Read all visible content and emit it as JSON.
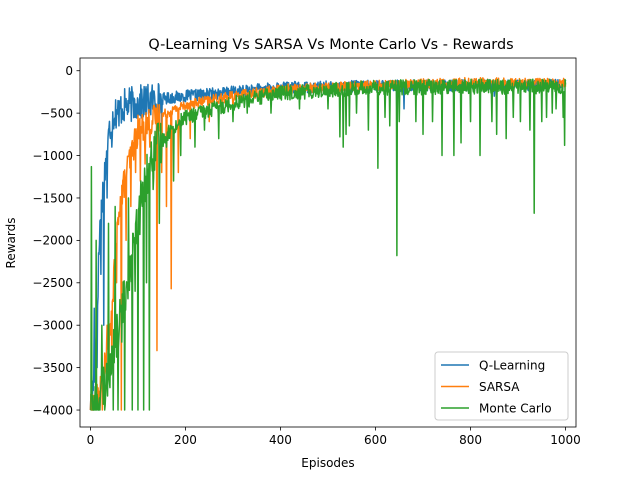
{
  "chart_data": {
    "type": "line",
    "title": "Q-Learning Vs SARSA Vs Monte Carlo Vs - Rewards",
    "xlabel": "Episodes",
    "ylabel": "Rewards",
    "xlim": [
      -22,
      1022
    ],
    "ylim": [
      -4200,
      150
    ],
    "xticks": [
      0,
      200,
      400,
      600,
      800,
      1000
    ],
    "yticks": [
      0,
      -500,
      -1000,
      -1500,
      -2000,
      -2500,
      -3000,
      -3500,
      -4000
    ],
    "grid": false,
    "legend_position": "lower-right",
    "series": [
      {
        "name": "Q-Learning",
        "color": "#1f77b4",
        "trend": [
          [
            0,
            -4000
          ],
          [
            10,
            -3500
          ],
          [
            20,
            -1800
          ],
          [
            30,
            -1200
          ],
          [
            40,
            -700
          ],
          [
            50,
            -500
          ],
          [
            70,
            -420
          ],
          [
            100,
            -380
          ],
          [
            150,
            -330
          ],
          [
            200,
            -300
          ],
          [
            300,
            -250
          ],
          [
            400,
            -200
          ],
          [
            600,
            -180
          ],
          [
            800,
            -170
          ],
          [
            1000,
            -170
          ]
        ],
        "noise": 70,
        "spikes": [
          [
            3,
            -4000
          ],
          [
            8,
            -2800
          ],
          [
            14,
            -3500
          ],
          [
            22,
            -2400
          ],
          [
            28,
            -3000
          ],
          [
            35,
            -1500
          ],
          [
            45,
            -900
          ],
          [
            60,
            -650
          ],
          [
            150,
            -650
          ],
          [
            645,
            -550
          ],
          [
            660,
            -450
          ],
          [
            740,
            -350
          ],
          [
            850,
            -300
          ]
        ]
      },
      {
        "name": "SARSA",
        "color": "#ff7f0e",
        "trend": [
          [
            0,
            -4000
          ],
          [
            20,
            -3800
          ],
          [
            40,
            -3200
          ],
          [
            60,
            -1600
          ],
          [
            80,
            -1100
          ],
          [
            100,
            -700
          ],
          [
            140,
            -550
          ],
          [
            200,
            -400
          ],
          [
            300,
            -300
          ],
          [
            400,
            -220
          ],
          [
            600,
            -170
          ],
          [
            800,
            -140
          ],
          [
            1000,
            -150
          ]
        ],
        "noise": 60,
        "spikes": [
          [
            25,
            -4000
          ],
          [
            35,
            -3000
          ],
          [
            45,
            -3500
          ],
          [
            55,
            -2500
          ],
          [
            65,
            -4000
          ],
          [
            75,
            -2000
          ],
          [
            85,
            -1600
          ],
          [
            95,
            -1200
          ],
          [
            105,
            -1300
          ],
          [
            115,
            -1100
          ],
          [
            125,
            -900
          ],
          [
            140,
            -3300
          ],
          [
            150,
            -1200
          ],
          [
            160,
            -1600
          ],
          [
            170,
            -2570
          ],
          [
            185,
            -1200
          ],
          [
            210,
            -800
          ],
          [
            250,
            -600
          ],
          [
            300,
            -450
          ]
        ]
      },
      {
        "name": "Monte Carlo",
        "color": "#2ca02c",
        "trend": [
          [
            0,
            -4000
          ],
          [
            20,
            -3900
          ],
          [
            40,
            -3500
          ],
          [
            60,
            -3000
          ],
          [
            80,
            -2400
          ],
          [
            100,
            -1800
          ],
          [
            120,
            -1200
          ],
          [
            140,
            -900
          ],
          [
            160,
            -750
          ],
          [
            200,
            -550
          ],
          [
            300,
            -380
          ],
          [
            400,
            -260
          ],
          [
            600,
            -200
          ],
          [
            800,
            -190
          ],
          [
            1000,
            -190
          ]
        ],
        "noise": 90,
        "spikes": [
          [
            2,
            -1130
          ],
          [
            5,
            -4000
          ],
          [
            12,
            -2000
          ],
          [
            18,
            -4000
          ],
          [
            24,
            -3000
          ],
          [
            30,
            -4000
          ],
          [
            38,
            -1800
          ],
          [
            48,
            -4000
          ],
          [
            52,
            -1600
          ],
          [
            58,
            -4000
          ],
          [
            66,
            -3200
          ],
          [
            72,
            -4000
          ],
          [
            80,
            -1500
          ],
          [
            88,
            -4000
          ],
          [
            94,
            -2600
          ],
          [
            100,
            -4000
          ],
          [
            106,
            -1300
          ],
          [
            112,
            -4000
          ],
          [
            118,
            -2500
          ],
          [
            124,
            -4000
          ],
          [
            132,
            -1400
          ],
          [
            145,
            -1800
          ],
          [
            160,
            -900
          ],
          [
            175,
            -1300
          ],
          [
            190,
            -1000
          ],
          [
            220,
            -900
          ],
          [
            240,
            -700
          ],
          [
            270,
            -800
          ],
          [
            300,
            -600
          ],
          [
            330,
            -500
          ],
          [
            380,
            -500
          ],
          [
            440,
            -450
          ],
          [
            500,
            -450
          ],
          [
            525,
            -780
          ],
          [
            532,
            -900
          ],
          [
            538,
            -750
          ],
          [
            545,
            -650
          ],
          [
            560,
            -500
          ],
          [
            585,
            -700
          ],
          [
            605,
            -1150
          ],
          [
            620,
            -550
          ],
          [
            630,
            -650
          ],
          [
            645,
            -2180
          ],
          [
            650,
            -600
          ],
          [
            685,
            -600
          ],
          [
            700,
            -750
          ],
          [
            720,
            -600
          ],
          [
            740,
            -1000
          ],
          [
            765,
            -1000
          ],
          [
            780,
            -850
          ],
          [
            800,
            -600
          ],
          [
            820,
            -1000
          ],
          [
            845,
            -600
          ],
          [
            855,
            -750
          ],
          [
            875,
            -800
          ],
          [
            890,
            -550
          ],
          [
            905,
            -600
          ],
          [
            925,
            -700
          ],
          [
            934,
            -1680
          ],
          [
            950,
            -600
          ],
          [
            960,
            -550
          ],
          [
            972,
            -500
          ],
          [
            980,
            -450
          ],
          [
            995,
            -550
          ],
          [
            998,
            -880
          ]
        ]
      }
    ]
  }
}
